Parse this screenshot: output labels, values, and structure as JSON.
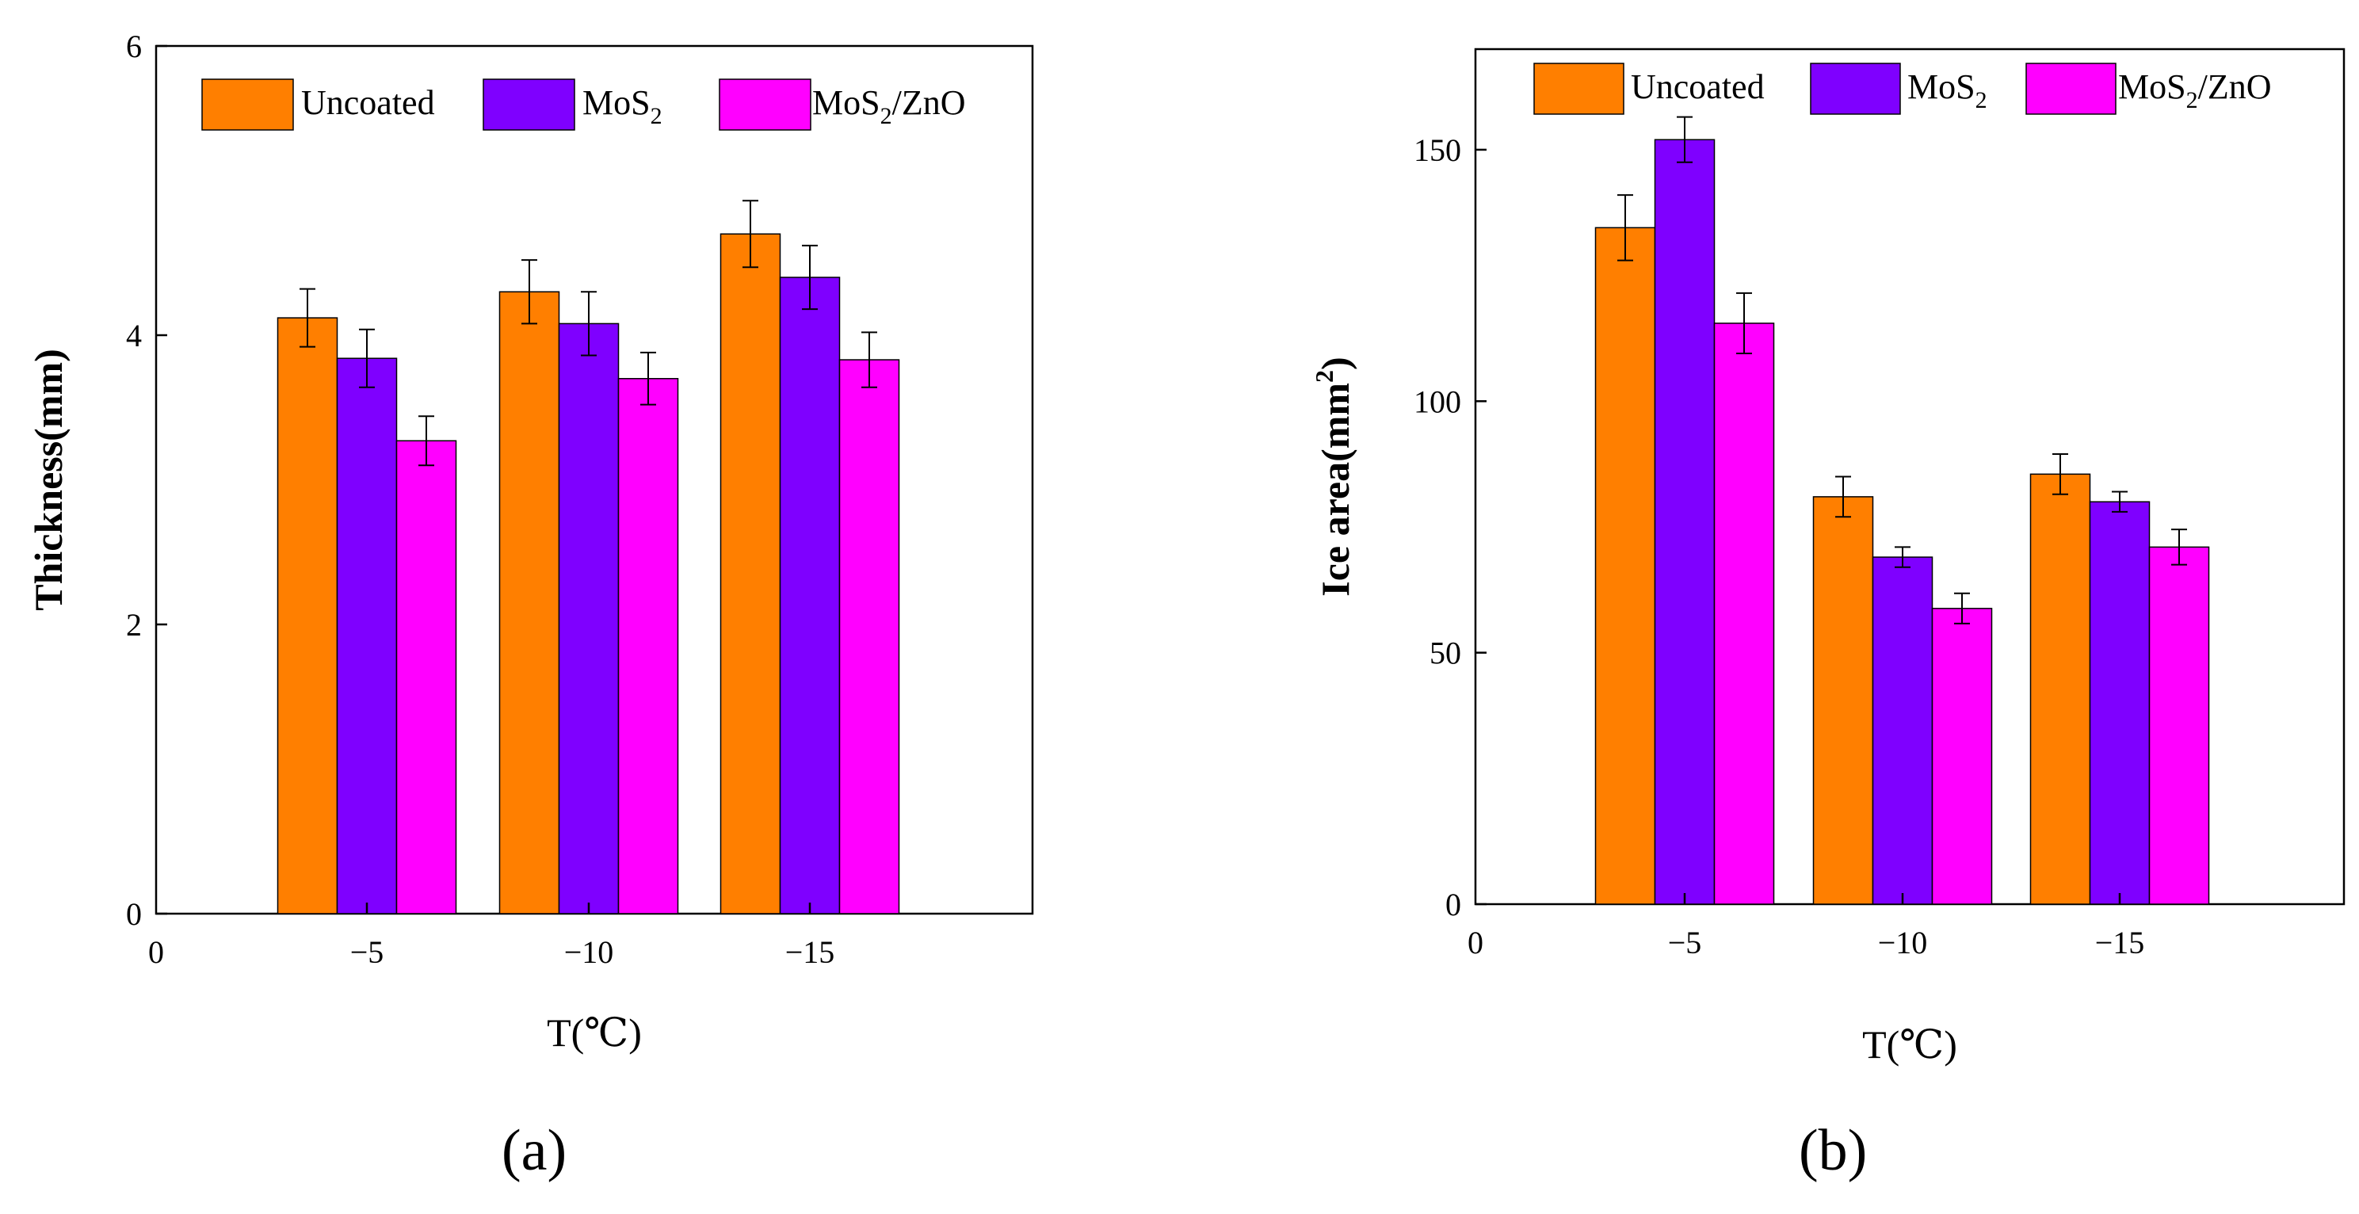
{
  "figure": {
    "panel_labels": [
      "(a)",
      "(b)"
    ]
  },
  "legend_entries": [
    {
      "base": "Uncoated",
      "sub": "",
      "rest": "",
      "color": "#ff7f00"
    },
    {
      "base": "MoS",
      "sub": "2",
      "rest": "",
      "color": "#7f00ff"
    },
    {
      "base": "MoS",
      "sub": "2",
      "rest": "/ZnO",
      "color": "#ff00ff"
    }
  ],
  "chart_data": [
    {
      "type": "bar",
      "title": "",
      "xlabel": "T(℃)",
      "ylabel": "Thickness(mm)",
      "ylabel_sup": "",
      "ylabel_end": "",
      "categories": [
        "-5",
        "-10",
        "-15"
      ],
      "category_tick_labels": [
        "−5",
        "−10",
        "−15"
      ],
      "x_zero_label": "0",
      "ylim": [
        0,
        6
      ],
      "yticks": [
        0,
        2,
        4,
        6
      ],
      "grid": false,
      "legend_position": "top",
      "series": [
        {
          "name": "Uncoated",
          "values": [
            4.12,
            4.3,
            4.7
          ],
          "errors": [
            0.2,
            0.22,
            0.23
          ]
        },
        {
          "name": "MoS2",
          "values": [
            3.84,
            4.08,
            4.4
          ],
          "errors": [
            0.2,
            0.22,
            0.22
          ]
        },
        {
          "name": "MoS2/ZnO",
          "values": [
            3.27,
            3.7,
            3.83
          ],
          "errors": [
            0.17,
            0.18,
            0.19
          ]
        }
      ]
    },
    {
      "type": "bar",
      "title": "",
      "xlabel": "T(℃)",
      "ylabel": "Ice area(mm",
      "ylabel_sup": "2",
      "ylabel_end": ")",
      "categories": [
        "-5",
        "-10",
        "-15"
      ],
      "category_tick_labels": [
        "−5",
        "−10",
        "−15"
      ],
      "x_zero_label": "0",
      "ylim": [
        0,
        170
      ],
      "yticks": [
        0,
        50,
        100,
        150
      ],
      "grid": false,
      "legend_position": "top",
      "series": [
        {
          "name": "Uncoated",
          "values": [
            134.5,
            81.0,
            85.5
          ],
          "errors": [
            6.5,
            4.0,
            4.0
          ]
        },
        {
          "name": "MoS2",
          "values": [
            152.0,
            69.0,
            80.0
          ],
          "errors": [
            4.5,
            2.0,
            2.0
          ]
        },
        {
          "name": "MoS2/ZnO",
          "values": [
            115.5,
            58.8,
            71.0
          ],
          "errors": [
            6.0,
            3.0,
            3.5
          ]
        }
      ]
    }
  ]
}
